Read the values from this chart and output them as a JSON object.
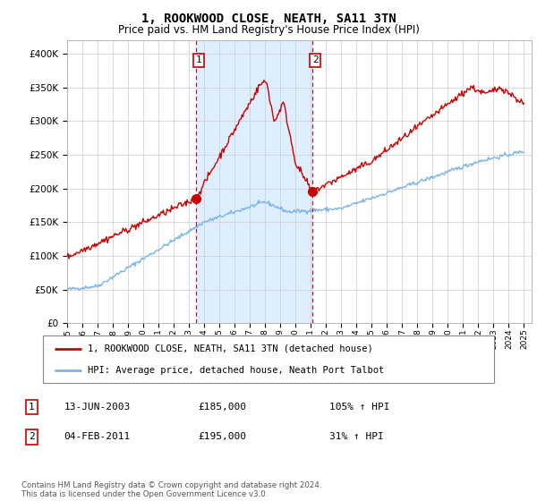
{
  "title": "1, ROOKWOOD CLOSE, NEATH, SA11 3TN",
  "subtitle": "Price paid vs. HM Land Registry's House Price Index (HPI)",
  "ylim": [
    0,
    420000
  ],
  "yticks": [
    0,
    50000,
    100000,
    150000,
    200000,
    250000,
    300000,
    350000,
    400000
  ],
  "ytick_labels": [
    "£0",
    "£50K",
    "£100K",
    "£150K",
    "£200K",
    "£250K",
    "£300K",
    "£350K",
    "£400K"
  ],
  "x_start_year": 1995,
  "x_end_year": 2025,
  "sale1_year": 2003.45,
  "sale1_price": 185000,
  "sale1_label": "1",
  "sale1_date": "13-JUN-2003",
  "sale1_hpi": "105%",
  "sale2_year": 2011.09,
  "sale2_price": 195000,
  "sale2_label": "2",
  "sale2_date": "04-FEB-2011",
  "sale2_hpi": "31%",
  "hpi_color": "#7ab4e8",
  "price_color": "#cc0000",
  "sale_dot_color": "#cc0000",
  "bg_color": "#ffffff",
  "span_color": "#ddeeff",
  "grid_color": "#cccccc",
  "legend1": "1, ROOKWOOD CLOSE, NEATH, SA11 3TN (detached house)",
  "legend2": "HPI: Average price, detached house, Neath Port Talbot",
  "footer": "Contains HM Land Registry data © Crown copyright and database right 2024.\nThis data is licensed under the Open Government Licence v3.0.",
  "title_fontsize": 10,
  "subtitle_fontsize": 8.5
}
